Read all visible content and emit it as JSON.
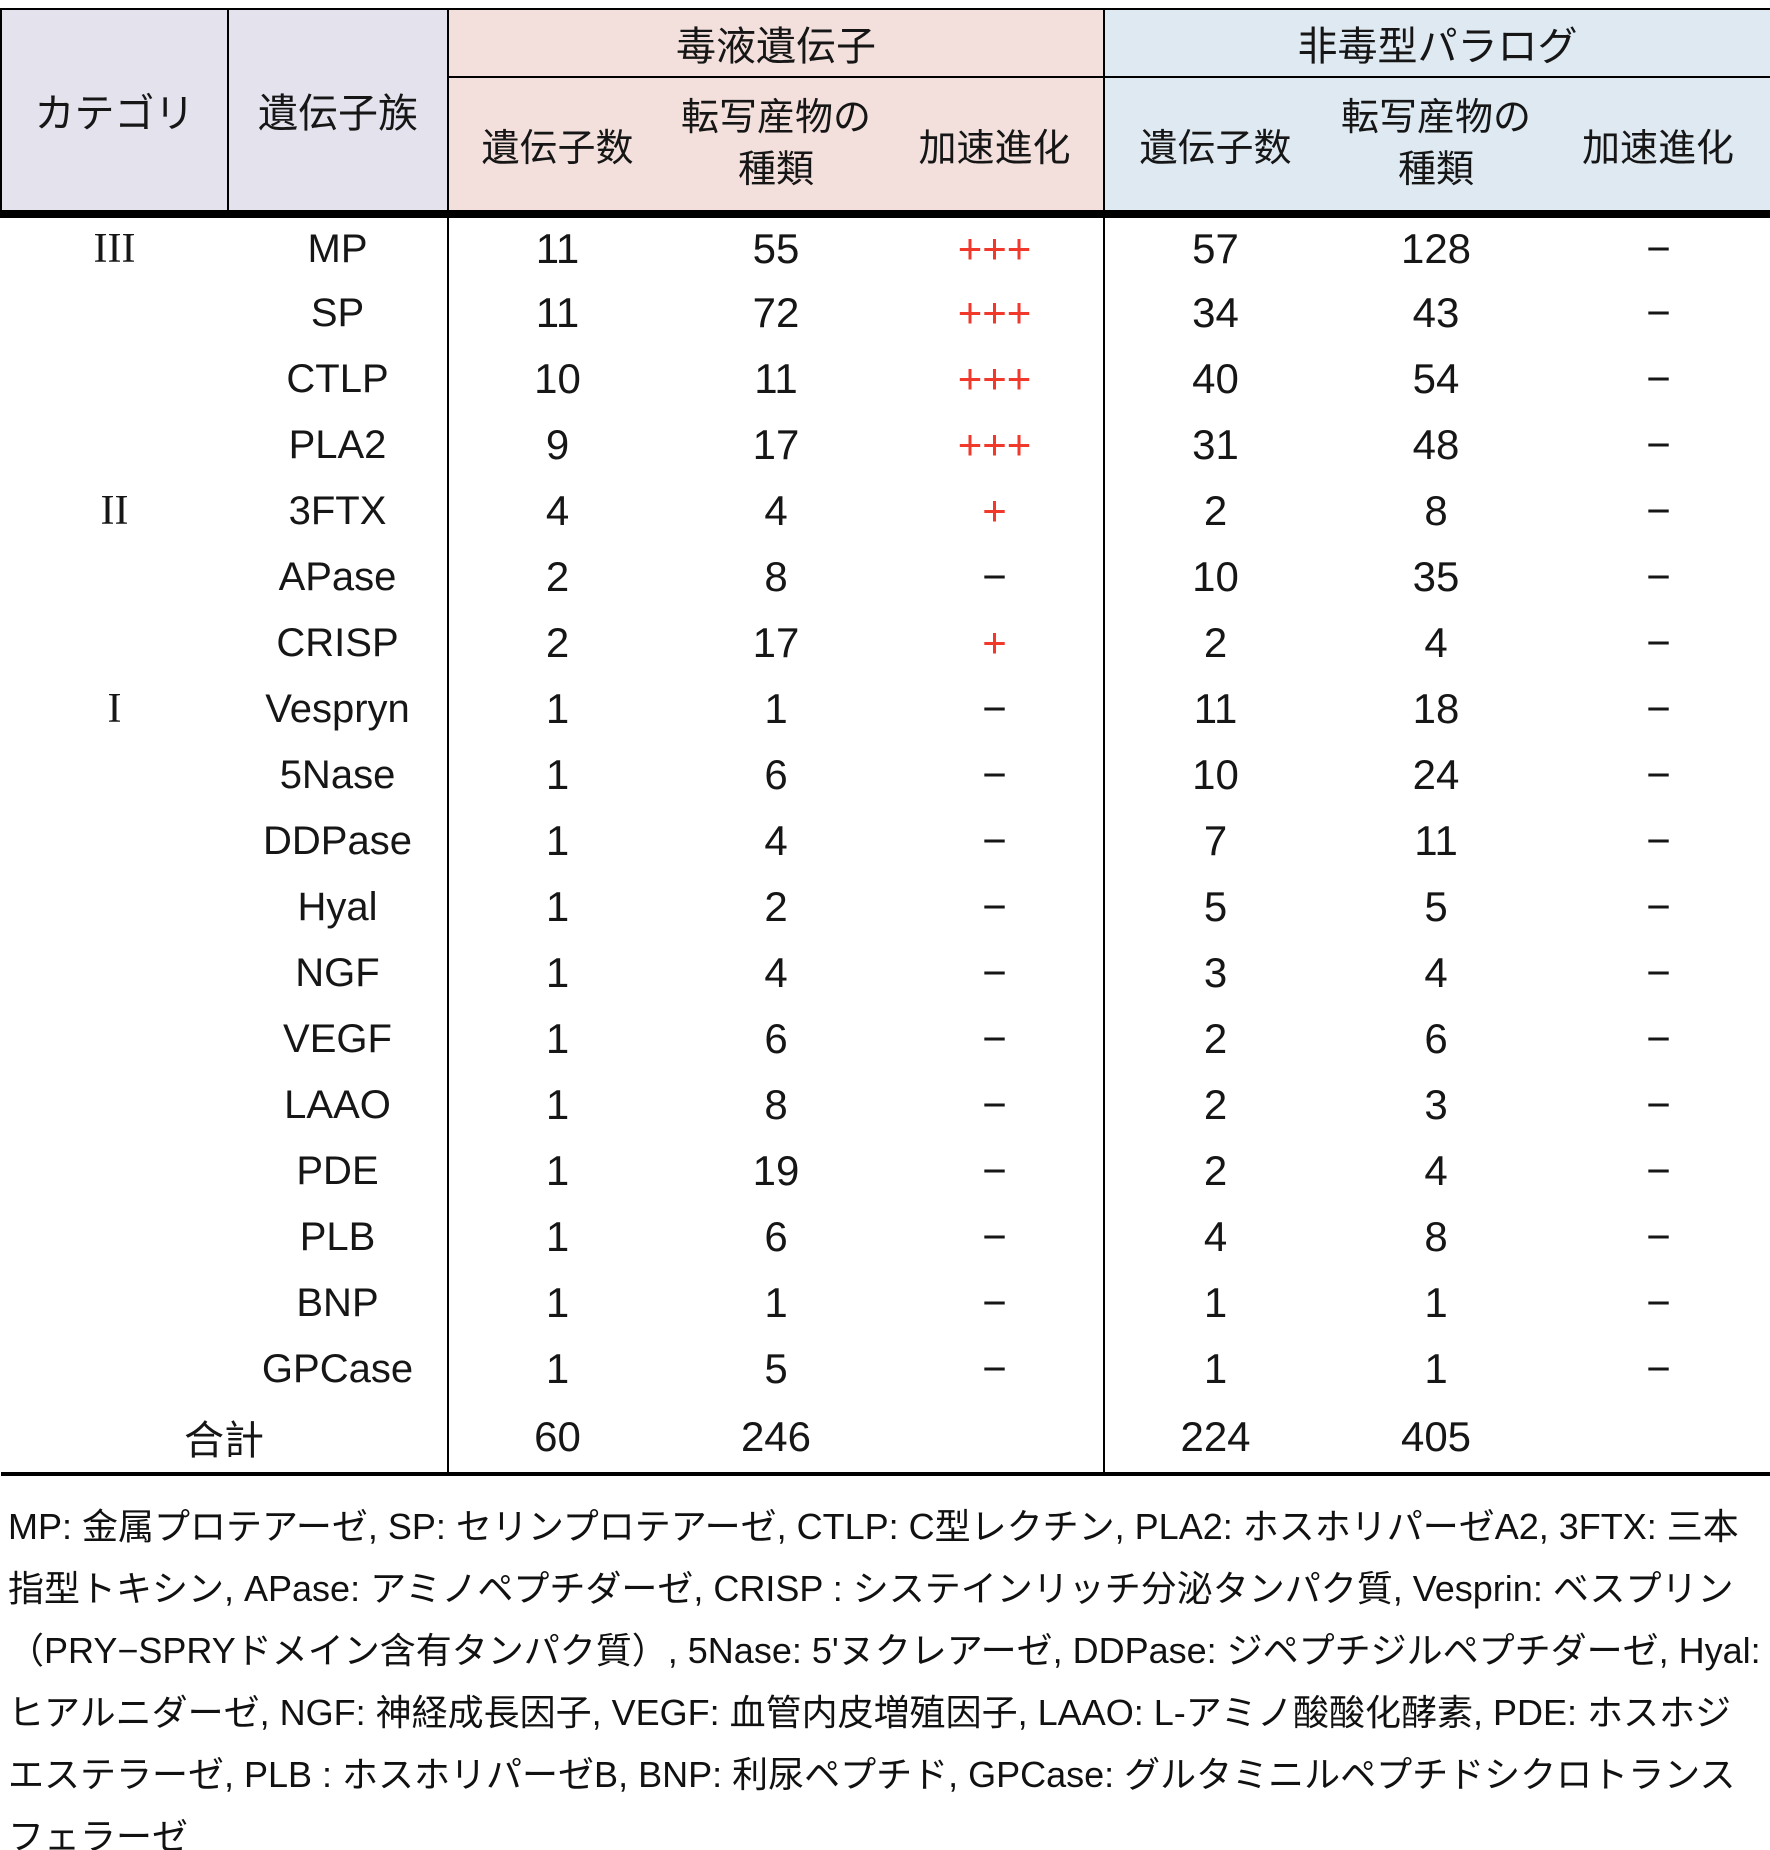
{
  "colors": {
    "lavender_header": "#e3e2ed",
    "pink_venom_header": "#f3e0dc",
    "blue_paralog_header": "#dee9f2",
    "accel_plus_red": "#f0382b"
  },
  "header": {
    "category": "カテゴリ",
    "gene_family": "遺伝子族",
    "venom_group_title": "毒液遺伝子",
    "paralog_group_title": "非毒型パラログ",
    "sub": {
      "gene_count": "遺伝子数",
      "transcripts_line1": "転写産物の",
      "transcripts_line2": "種類",
      "accelerated_evolution": "加速進化"
    }
  },
  "rows": [
    {
      "category": "III",
      "family": "MP",
      "venom": {
        "genes": "11",
        "transcripts": "55",
        "accel": "+++",
        "accel_red": true
      },
      "paralog": {
        "genes": "57",
        "transcripts": "128",
        "accel": "−"
      }
    },
    {
      "category": "",
      "family": "SP",
      "venom": {
        "genes": "11",
        "transcripts": "72",
        "accel": "+++",
        "accel_red": true
      },
      "paralog": {
        "genes": "34",
        "transcripts": "43",
        "accel": "−"
      }
    },
    {
      "category": "",
      "family": "CTLP",
      "venom": {
        "genes": "10",
        "transcripts": "11",
        "accel": "+++",
        "accel_red": true
      },
      "paralog": {
        "genes": "40",
        "transcripts": "54",
        "accel": "−"
      }
    },
    {
      "category": "",
      "family": "PLA2",
      "venom": {
        "genes": "9",
        "transcripts": "17",
        "accel": "+++",
        "accel_red": true
      },
      "paralog": {
        "genes": "31",
        "transcripts": "48",
        "accel": "−"
      }
    },
    {
      "category": "II",
      "family": "3FTX",
      "venom": {
        "genes": "4",
        "transcripts": "4",
        "accel": "+",
        "accel_red": true
      },
      "paralog": {
        "genes": "2",
        "transcripts": "8",
        "accel": "−"
      }
    },
    {
      "category": "",
      "family": "APase",
      "venom": {
        "genes": "2",
        "transcripts": "8",
        "accel": "−",
        "accel_red": false
      },
      "paralog": {
        "genes": "10",
        "transcripts": "35",
        "accel": "−"
      }
    },
    {
      "category": "",
      "family": "CRISP",
      "venom": {
        "genes": "2",
        "transcripts": "17",
        "accel": "+",
        "accel_red": true
      },
      "paralog": {
        "genes": "2",
        "transcripts": "4",
        "accel": "−"
      }
    },
    {
      "category": "I",
      "family": "Vespryn",
      "venom": {
        "genes": "1",
        "transcripts": "1",
        "accel": "−",
        "accel_red": false
      },
      "paralog": {
        "genes": "11",
        "transcripts": "18",
        "accel": "−"
      }
    },
    {
      "category": "",
      "family": "5Nase",
      "venom": {
        "genes": "1",
        "transcripts": "6",
        "accel": "−",
        "accel_red": false
      },
      "paralog": {
        "genes": "10",
        "transcripts": "24",
        "accel": "−"
      }
    },
    {
      "category": "",
      "family": "DDPase",
      "venom": {
        "genes": "1",
        "transcripts": "4",
        "accel": "−",
        "accel_red": false
      },
      "paralog": {
        "genes": "7",
        "transcripts": "11",
        "accel": "−"
      }
    },
    {
      "category": "",
      "family": "Hyal",
      "venom": {
        "genes": "1",
        "transcripts": "2",
        "accel": "−",
        "accel_red": false
      },
      "paralog": {
        "genes": "5",
        "transcripts": "5",
        "accel": "−"
      }
    },
    {
      "category": "",
      "family": "NGF",
      "venom": {
        "genes": "1",
        "transcripts": "4",
        "accel": "−",
        "accel_red": false
      },
      "paralog": {
        "genes": "3",
        "transcripts": "4",
        "accel": "−"
      }
    },
    {
      "category": "",
      "family": "VEGF",
      "venom": {
        "genes": "1",
        "transcripts": "6",
        "accel": "−",
        "accel_red": false
      },
      "paralog": {
        "genes": "2",
        "transcripts": "6",
        "accel": "−"
      }
    },
    {
      "category": "",
      "family": "LAAO",
      "venom": {
        "genes": "1",
        "transcripts": "8",
        "accel": "−",
        "accel_red": false
      },
      "paralog": {
        "genes": "2",
        "transcripts": "3",
        "accel": "−"
      }
    },
    {
      "category": "",
      "family": "PDE",
      "venom": {
        "genes": "1",
        "transcripts": "19",
        "accel": "−",
        "accel_red": false
      },
      "paralog": {
        "genes": "2",
        "transcripts": "4",
        "accel": "−"
      }
    },
    {
      "category": "",
      "family": "PLB",
      "venom": {
        "genes": "1",
        "transcripts": "6",
        "accel": "−",
        "accel_red": false
      },
      "paralog": {
        "genes": "4",
        "transcripts": "8",
        "accel": "−"
      }
    },
    {
      "category": "",
      "family": "BNP",
      "venom": {
        "genes": "1",
        "transcripts": "1",
        "accel": "−",
        "accel_red": false
      },
      "paralog": {
        "genes": "1",
        "transcripts": "1",
        "accel": "−"
      }
    },
    {
      "category": "",
      "family": "GPCase",
      "venom": {
        "genes": "1",
        "transcripts": "5",
        "accel": "−",
        "accel_red": false
      },
      "paralog": {
        "genes": "1",
        "transcripts": "1",
        "accel": "−"
      }
    }
  ],
  "total": {
    "label": "合計",
    "venom": {
      "genes": "60",
      "transcripts": "246",
      "accel": ""
    },
    "paralog": {
      "genes": "224",
      "transcripts": "405",
      "accel": ""
    }
  },
  "footnote": "MP: 金属プロテアーゼ, SP: セリンプロテアーゼ, CTLP: C型レクチン, PLA2: ホスホリパーゼA2, 3FTX: 三本指型トキシン, APase: アミノペプチダーゼ, CRISP : システインリッチ分泌タンパク質, Vesprin: ベスプリン（PRY−SPRYドメイン含有タンパク質）, 5Nase: 5'ヌクレアーゼ, DDPase: ジペプチジルペプチダーゼ, Hyal: ヒアルニダーゼ, NGF: 神経成長因子, VEGF: 血管内皮増殖因子, LAAO: L-アミノ酸酸化酵素, PDE: ホスホジエステラーゼ, PLB : ホスホリパーゼB, BNP: 利尿ペプチド, GPCase: グルタミニルペプチドシクロトランスフェラーゼ"
}
